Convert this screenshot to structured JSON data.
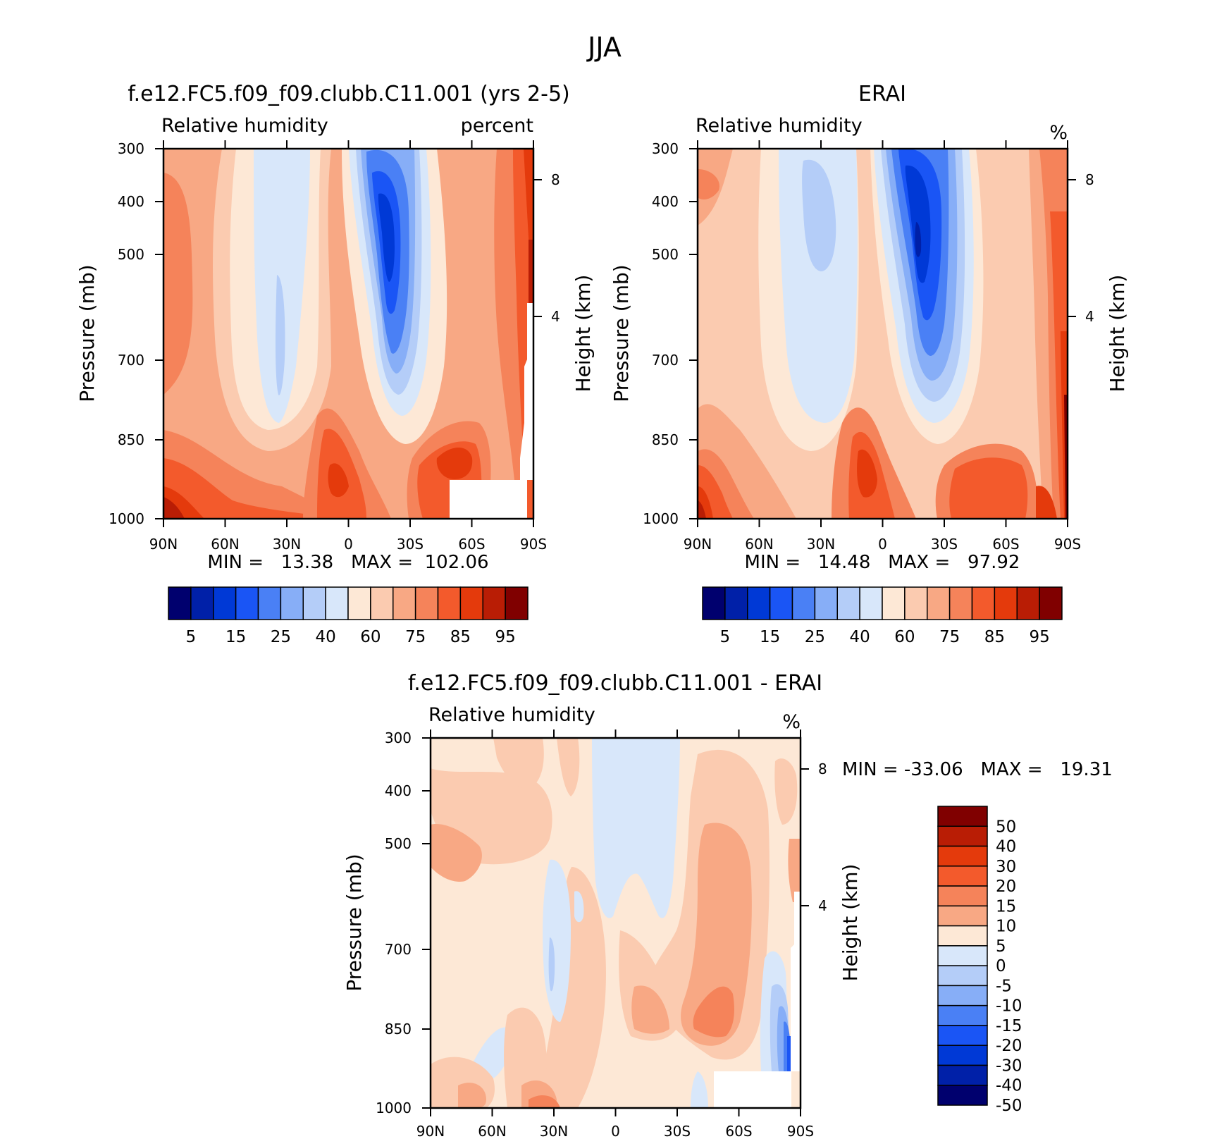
{
  "page": {
    "title": "JJA"
  },
  "colors": {
    "abs_scale": [
      "#00006e",
      "#0020a8",
      "#0039d6",
      "#1a55f5",
      "#4a80f5",
      "#87aef7",
      "#b4cdf8",
      "#d8e7fa",
      "#fde8d6",
      "#fbcbb0",
      "#f8a884",
      "#f5835a",
      "#f35a2c",
      "#e43a0c",
      "#b91d05",
      "#800000"
    ],
    "diff_scale": [
      "#800000",
      "#b91d05",
      "#e43a0c",
      "#f35a2c",
      "#f5835a",
      "#f8a884",
      "#fde8d6",
      "#d8e7fa",
      "#b4cdf8",
      "#87aef7",
      "#4a80f5",
      "#1a55f5",
      "#0039d6",
      "#0020a8",
      "#00006e"
    ]
  },
  "chart_data": [
    {
      "type": "heatmap",
      "title": "f.e12.FC5.f09_f09.clubb.C11.001 (yrs 2-5)",
      "left_subtitle": "Relative humidity",
      "right_subtitle": "percent",
      "xlabel": "",
      "ylabel": "Pressure (mb)",
      "ylabel_right": "Height (km)",
      "x_ticks": [
        "90N",
        "60N",
        "30N",
        "0",
        "30S",
        "60S",
        "90S"
      ],
      "y_ticks": [
        "300",
        "400",
        "500",
        "700",
        "850",
        "1000"
      ],
      "y_right_ticks": [
        "8",
        "4"
      ],
      "stats": "MIN =   13.38   MAX =  102.06",
      "colorbar_labels": [
        "5",
        "15",
        "25",
        "40",
        "60",
        "75",
        "85",
        "95"
      ],
      "x": [
        90,
        -90
      ],
      "y": [
        300,
        1000
      ]
    },
    {
      "type": "heatmap",
      "title": "ERAI",
      "left_subtitle": "Relative humidity",
      "right_subtitle": "%",
      "xlabel": "",
      "ylabel": "Pressure (mb)",
      "ylabel_right": "Height (km)",
      "x_ticks": [
        "90N",
        "60N",
        "30N",
        "0",
        "30S",
        "60S",
        "90S"
      ],
      "y_ticks": [
        "300",
        "400",
        "500",
        "700",
        "850",
        "1000"
      ],
      "y_right_ticks": [
        "8",
        "4"
      ],
      "stats": "MIN =   14.48   MAX =   97.92",
      "colorbar_labels": [
        "5",
        "15",
        "25",
        "40",
        "60",
        "75",
        "85",
        "95"
      ],
      "x": [
        90,
        -90
      ],
      "y": [
        300,
        1000
      ]
    },
    {
      "type": "heatmap",
      "title": "f.e12.FC5.f09_f09.clubb.C11.001 - ERAI",
      "left_subtitle": "Relative humidity",
      "right_subtitle": "%",
      "xlabel": "",
      "ylabel": "Pressure (mb)",
      "ylabel_right": "Height (km)",
      "x_ticks": [
        "90N",
        "60N",
        "30N",
        "0",
        "30S",
        "60S",
        "90S"
      ],
      "y_ticks": [
        "300",
        "400",
        "500",
        "700",
        "850",
        "1000"
      ],
      "y_right_ticks": [
        "8",
        "4"
      ],
      "stats": "MIN = -33.06   MAX =   19.31",
      "colorbar_labels": [
        "50",
        "40",
        "30",
        "20",
        "15",
        "10",
        "5",
        "0",
        "-5",
        "-10",
        "-15",
        "-20",
        "-30",
        "-40",
        "-50"
      ],
      "x": [
        90,
        -90
      ],
      "y": [
        300,
        1000
      ]
    }
  ]
}
